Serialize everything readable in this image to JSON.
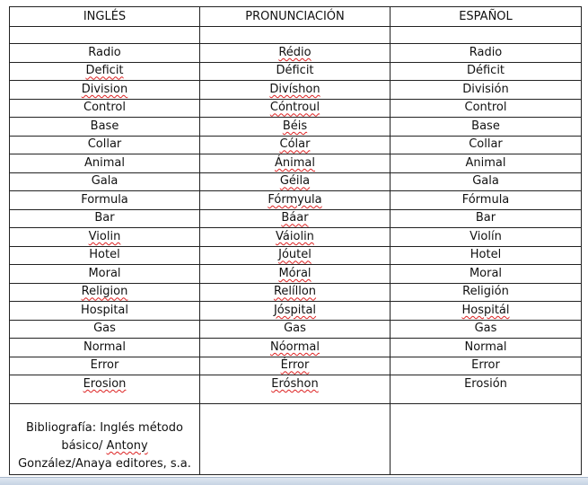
{
  "table": {
    "headers": [
      "INGLÉS",
      "PRONUNCIACIÓN",
      "ESPAÑOL"
    ],
    "rows": [
      {
        "en": "Radio",
        "pron": "Rédio",
        "es": "Radio",
        "sp": [
          false,
          true,
          false
        ]
      },
      {
        "en": "Deficit",
        "pron": "Déficit",
        "es": "Déficit",
        "sp": [
          true,
          false,
          false
        ]
      },
      {
        "en": "Division",
        "pron": "Divíshon",
        "es": "División",
        "sp": [
          true,
          true,
          false
        ]
      },
      {
        "en": "Control",
        "pron": "Cóntroul",
        "es": "Control",
        "sp": [
          false,
          true,
          false
        ]
      },
      {
        "en": "Base",
        "pron": "Béis",
        "es": "Base",
        "sp": [
          false,
          true,
          false
        ]
      },
      {
        "en": "Collar",
        "pron": "Cólar",
        "es": "Collar",
        "sp": [
          false,
          true,
          false
        ]
      },
      {
        "en": "Animal",
        "pron": "Ánimal",
        "es": "Animal",
        "sp": [
          false,
          true,
          false
        ]
      },
      {
        "en": "Gala",
        "pron": "Géila",
        "es": "Gala",
        "sp": [
          false,
          true,
          false
        ]
      },
      {
        "en": "Formula",
        "pron": "Fórmyula",
        "es": "Fórmula",
        "sp": [
          false,
          true,
          false
        ]
      },
      {
        "en": "Bar",
        "pron": "Báar",
        "es": "Bar",
        "sp": [
          false,
          true,
          false
        ]
      },
      {
        "en": "Violin",
        "pron": "Váiolin",
        "es": "Violín",
        "sp": [
          true,
          true,
          false
        ]
      },
      {
        "en": "Hotel",
        "pron": "Jóutel",
        "es": "Hotel",
        "sp": [
          false,
          true,
          false
        ]
      },
      {
        "en": "Moral",
        "pron": "Móral",
        "es": "Moral",
        "sp": [
          false,
          true,
          false
        ]
      },
      {
        "en": "Religion",
        "pron": "Relíllon",
        "es": "Religión",
        "sp": [
          true,
          true,
          false
        ]
      },
      {
        "en": "Hospital",
        "pron": "Jóspital",
        "es": "Hospitál",
        "sp": [
          false,
          true,
          true
        ]
      },
      {
        "en": "Gas",
        "pron": "Gas",
        "es": "Gas",
        "sp": [
          false,
          false,
          false
        ]
      },
      {
        "en": "Normal",
        "pron": "Nóormal",
        "es": "Normal",
        "sp": [
          false,
          true,
          false
        ]
      },
      {
        "en": "Error",
        "pron": "Érror",
        "es": "Error",
        "sp": [
          false,
          true,
          false
        ]
      },
      {
        "en": "Erosion",
        "pron": "Eróshon",
        "es": "Erosión",
        "sp": [
          true,
          true,
          false
        ]
      }
    ],
    "bibliography": {
      "line1": "Bibliografía: Inglés método",
      "line2a": "básico/ ",
      "line2b": "Antony",
      "line3": "González/Anaya editores, s.a."
    }
  },
  "colors": {
    "spellcheck": "#d22",
    "border": "#222"
  }
}
